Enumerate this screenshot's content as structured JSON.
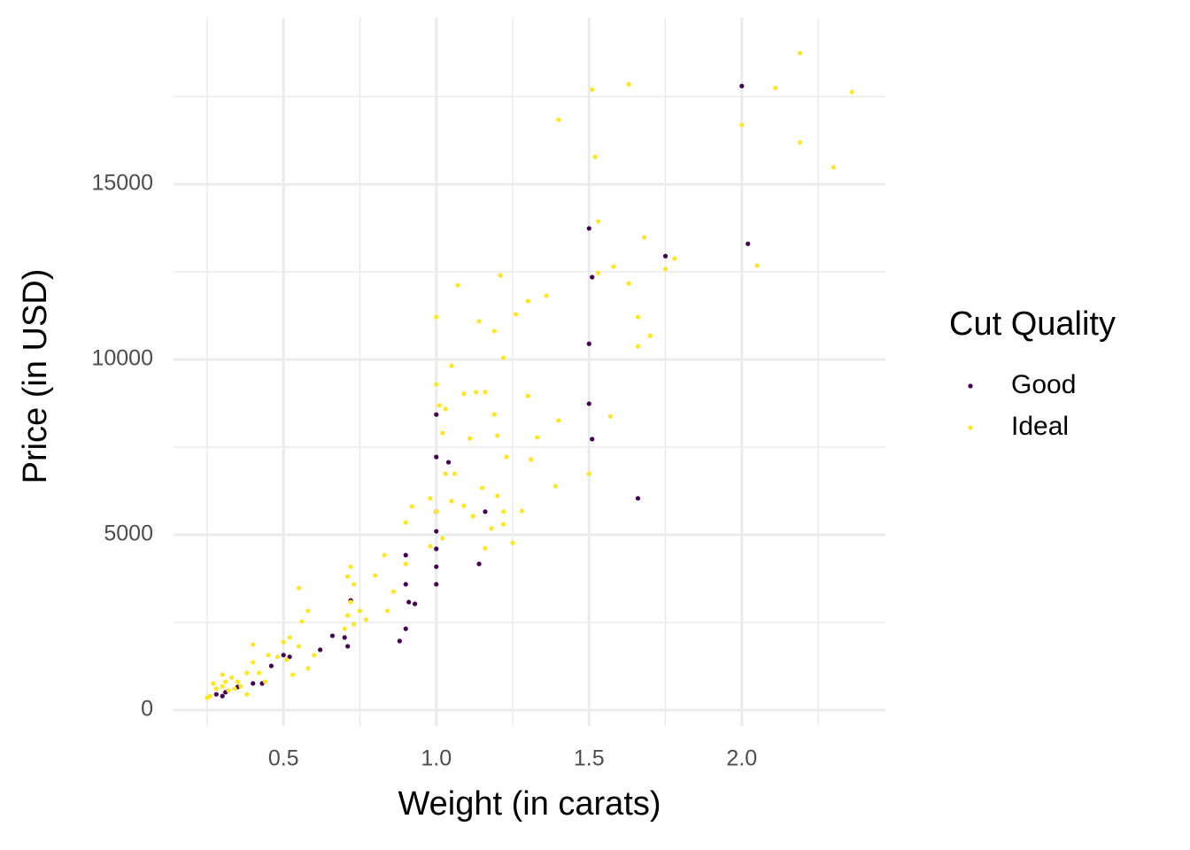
{
  "chart_data": {
    "type": "scatter",
    "x_label": "Weight (in carats)",
    "y_label": "Price (in USD)",
    "legend_title": "Cut Quality",
    "xlim": [
      0.14,
      2.47
    ],
    "ylim": [
      -455,
      19750
    ],
    "xticks": [
      0.5,
      {
        "value": 1,
        "label": "1.0"
      },
      1.5,
      {
        "value": 2,
        "label": "2.0"
      }
    ],
    "yticks": [
      0,
      5000,
      10000,
      15000
    ],
    "xminorticks": [
      0.25,
      0.75,
      1.25,
      1.75,
      2.25
    ],
    "yminorticks": [
      2500,
      7500,
      12500,
      17500
    ],
    "grid": true,
    "legend": "right",
    "series": [
      {
        "name": "Good",
        "color": "#440154",
        "x": [
          2.0,
          2.02,
          1.75,
          1.5,
          1.51,
          1.5,
          1.5,
          1.51,
          1.66,
          1.0,
          1.0,
          1.04,
          1.16,
          1.14,
          1.0,
          1.0,
          1.0,
          1.0,
          1.0,
          0.9,
          0.9,
          0.91,
          0.93,
          0.88,
          0.9,
          0.72,
          0.71,
          0.7,
          0.66,
          0.62,
          0.52,
          0.5,
          0.46,
          0.43,
          0.4,
          0.35,
          0.31,
          0.3,
          0.28
        ],
        "values": [
          17800,
          13300,
          12950,
          13740,
          12350,
          10450,
          8740,
          7730,
          6040,
          8430,
          7220,
          7070,
          5660,
          4170,
          5660,
          5100,
          4600,
          4090,
          3590,
          4420,
          3590,
          3080,
          3030,
          1970,
          2320,
          3130,
          1820,
          2070,
          2120,
          1720,
          1520,
          1570,
          1260,
          760,
          760,
          660,
          510,
          400,
          450
        ]
      },
      {
        "name": "Ideal",
        "color": "#FDE725",
        "x": [
          2.19,
          1.63,
          1.51,
          2.11,
          2.36,
          1.4,
          2.0,
          2.19,
          2.3,
          1.52,
          1.53,
          1.68,
          1.75,
          1.78,
          1.58,
          1.63,
          2.05,
          1.53,
          1.07,
          1.21,
          1.0,
          1.14,
          1.36,
          1.3,
          1.26,
          1.66,
          1.66,
          1.7,
          1.19,
          1.22,
          1.05,
          1.0,
          1.13,
          1.16,
          1.09,
          1.3,
          1.01,
          1.03,
          1.19,
          1.4,
          1.57,
          1.02,
          1.11,
          1.2,
          1.33,
          1.23,
          1.31,
          1.06,
          1.03,
          1.5,
          1.39,
          1.15,
          0.98,
          1.05,
          1.09,
          0.92,
          1.2,
          1.22,
          1.28,
          1.0,
          1.12,
          0.9,
          1.22,
          1.18,
          1.25,
          1.16,
          1.02,
          0.98,
          0.83,
          0.72,
          0.71,
          0.73,
          0.9,
          0.8,
          0.55,
          0.86,
          0.72,
          0.75,
          0.71,
          0.73,
          0.7,
          0.77,
          0.84,
          0.58,
          0.56,
          0.52,
          0.5,
          0.55,
          0.51,
          0.6,
          0.58,
          0.53,
          0.48,
          0.42,
          0.4,
          0.38,
          0.35,
          0.33,
          0.31,
          0.3,
          0.32,
          0.34,
          0.36,
          0.28,
          0.27,
          0.25,
          0.26,
          0.3,
          0.4,
          0.45,
          0.38,
          0.44
        ],
        "values": [
          18740,
          17850,
          17700,
          17750,
          17630,
          16840,
          16690,
          16190,
          15480,
          15780,
          13940,
          13480,
          12580,
          12880,
          12650,
          12170,
          12680,
          12470,
          12120,
          12400,
          11210,
          11090,
          11820,
          11670,
          11290,
          11210,
          10380,
          10680,
          10810,
          10050,
          9820,
          9290,
          9070,
          9070,
          9020,
          8960,
          8690,
          8590,
          8430,
          8260,
          8380,
          7900,
          7750,
          7830,
          7780,
          7220,
          7150,
          6740,
          6740,
          6740,
          6390,
          6340,
          6040,
          5960,
          5830,
          5810,
          6110,
          5660,
          5680,
          5660,
          5530,
          5350,
          5300,
          5180,
          4770,
          4620,
          4900,
          4670,
          4420,
          4090,
          3810,
          3590,
          4170,
          3840,
          3480,
          3380,
          3080,
          2830,
          2700,
          2450,
          2320,
          2580,
          2830,
          2830,
          2530,
          2070,
          1940,
          1820,
          1440,
          1570,
          1190,
          1010,
          1520,
          1060,
          1360,
          1060,
          810,
          930,
          810,
          680,
          560,
          610,
          680,
          610,
          760,
          350,
          400,
          1010,
          1870,
          1570,
          450,
          810
        ]
      }
    ]
  }
}
